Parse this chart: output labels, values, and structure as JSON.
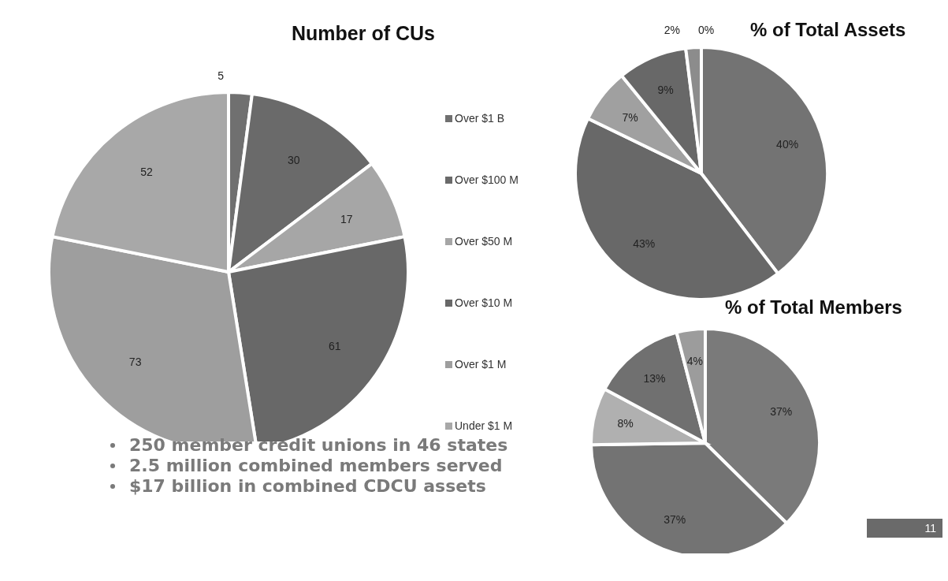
{
  "chart_data": [
    {
      "type": "pie",
      "title": "Number of CUs",
      "categories": [
        "Over $1 B",
        "Over $100 M",
        "Over $50 M",
        "Over $10 M",
        "Over $1 M",
        "Under $1 M"
      ],
      "values": [
        5,
        30,
        17,
        61,
        73,
        52
      ],
      "colors": [
        "#707070",
        "#6a6a6a",
        "#a6a6a6",
        "#686868",
        "#9e9e9e",
        "#a8a8a8"
      ],
      "data_labels": true,
      "legend": "right",
      "annotations": [
        "250 member credit unions in 46 states",
        "2.5 million combined members served",
        "$17 billion in combined CDCU assets",
        "11"
      ]
    },
    {
      "type": "pie",
      "title": "% of Total Assets",
      "categories": [
        null,
        null,
        null,
        null,
        null,
        null
      ],
      "values": [
        40,
        43,
        7,
        9,
        2,
        0
      ],
      "colors": [
        "#737373",
        "#686868",
        "#a0a0a0",
        "#686868",
        "#8c8c8c",
        "#a0a0a0"
      ],
      "value_labels": [
        "40%",
        "43%",
        "7%",
        "9%",
        "2%",
        "0%"
      ],
      "legend": false
    },
    {
      "type": "pie",
      "title": "% of Total Members",
      "categories": [
        null,
        null,
        null,
        null,
        null
      ],
      "values": [
        37,
        37,
        8,
        13,
        4
      ],
      "colors": [
        "#7a7a7a",
        "#737373",
        "#b0b0b0",
        "#707070",
        "#9c9c9c"
      ],
      "value_labels": [
        "37%",
        "37%",
        "8%",
        "13%",
        "4%"
      ],
      "legend": false
    }
  ]
}
